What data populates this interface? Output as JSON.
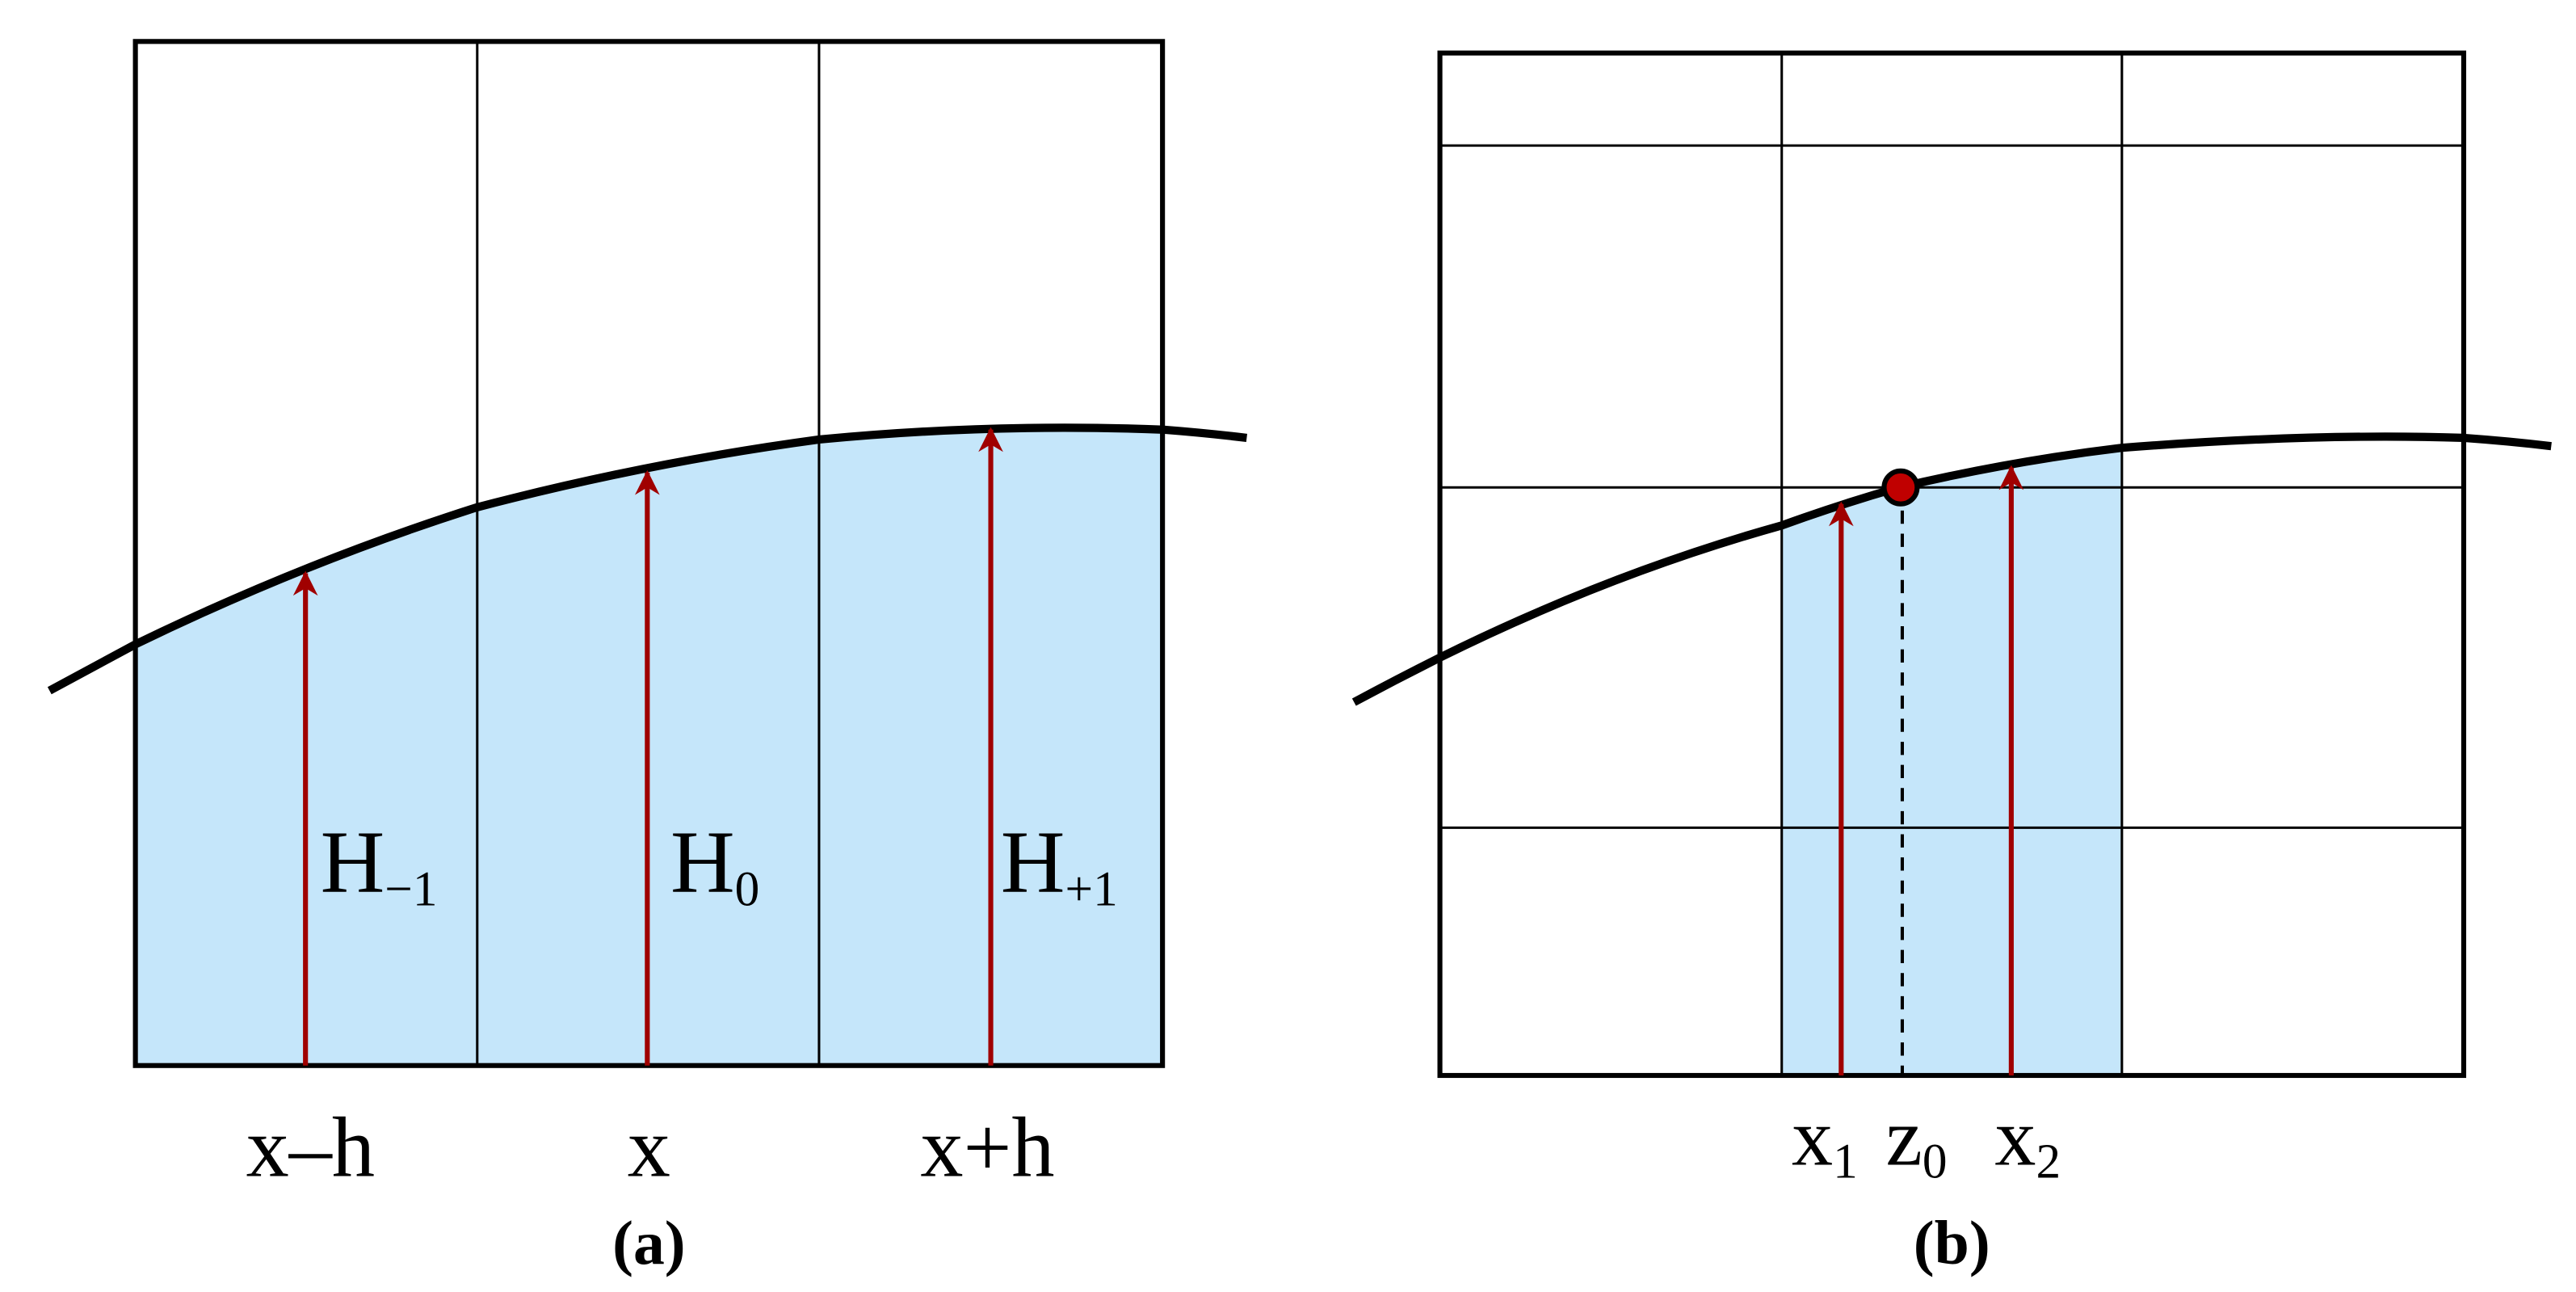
{
  "panel_a": {
    "heights": [
      {
        "base": "H",
        "sub": "−1"
      },
      {
        "base": "H",
        "sub": "0"
      },
      {
        "base": "H",
        "sub": "+1"
      }
    ],
    "positions": [
      "x–h",
      "x",
      "x+h"
    ],
    "caption": "(a)"
  },
  "panel_b": {
    "positions": [
      {
        "base": "x",
        "sub": "1"
      },
      {
        "base": "z",
        "sub": "0"
      },
      {
        "base": "x",
        "sub": "2"
      }
    ],
    "caption": "(b)"
  }
}
